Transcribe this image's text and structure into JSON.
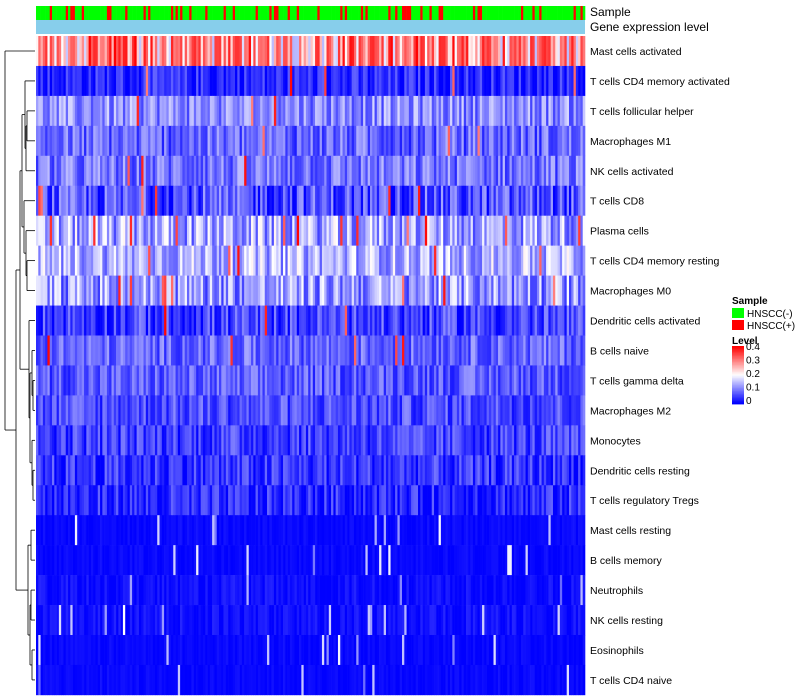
{
  "chart_data": {
    "type": "heatmap",
    "title": "",
    "rows": [
      {
        "name": "Mast cells activated",
        "mean": 0.26,
        "spread": 0.12,
        "hot": 0.3
      },
      {
        "name": "T cells CD4 memory activated",
        "mean": 0.03,
        "spread": 0.05,
        "hot": 0.02
      },
      {
        "name": "T cells follicular helper",
        "mean": 0.11,
        "spread": 0.06,
        "hot": 0.01
      },
      {
        "name": "Macrophages M1",
        "mean": 0.08,
        "spread": 0.06,
        "hot": 0.01
      },
      {
        "name": "NK cells activated",
        "mean": 0.09,
        "spread": 0.06,
        "hot": 0.01
      },
      {
        "name": "T cells CD8",
        "mean": 0.06,
        "spread": 0.07,
        "hot": 0.02
      },
      {
        "name": "Plasma cells",
        "mean": 0.13,
        "spread": 0.08,
        "hot": 0.06
      },
      {
        "name": "T cells CD4 memory resting",
        "mean": 0.14,
        "spread": 0.07,
        "hot": 0.02
      },
      {
        "name": "Macrophages M0",
        "mean": 0.12,
        "spread": 0.08,
        "hot": 0.03
      },
      {
        "name": "Dendritic cells activated",
        "mean": 0.05,
        "spread": 0.06,
        "hot": 0.01
      },
      {
        "name": "B cells naive",
        "mean": 0.08,
        "spread": 0.05,
        "hot": 0.01
      },
      {
        "name": "T cells gamma delta",
        "mean": 0.07,
        "spread": 0.05,
        "hot": 0.0
      },
      {
        "name": "Macrophages M2",
        "mean": 0.06,
        "spread": 0.05,
        "hot": 0.0
      },
      {
        "name": "Monocytes",
        "mean": 0.05,
        "spread": 0.05,
        "hot": 0.0
      },
      {
        "name": "Dendritic cells resting",
        "mean": 0.04,
        "spread": 0.05,
        "hot": 0.0
      },
      {
        "name": "T cells regulatory  Tregs",
        "mean": 0.03,
        "spread": 0.05,
        "hot": 0.0
      },
      {
        "name": "Mast cells resting",
        "mean": 0.005,
        "spread": 0.01,
        "hot": 0.0
      },
      {
        "name": "B cells memory",
        "mean": 0.005,
        "spread": 0.01,
        "hot": 0.0
      },
      {
        "name": "Neutrophils",
        "mean": 0.01,
        "spread": 0.02,
        "hot": 0.0
      },
      {
        "name": "NK cells resting",
        "mean": 0.01,
        "spread": 0.02,
        "hot": 0.0
      },
      {
        "name": "Eosinophils",
        "mean": 0.005,
        "spread": 0.01,
        "hot": 0.0
      },
      {
        "name": "T cells CD4 naive",
        "mean": 0.005,
        "spread": 0.01,
        "hot": 0.0
      }
    ],
    "n_samples": 240,
    "hnscc_pos_fraction": 0.25,
    "annotations": {
      "sample_label": "Sample",
      "expression_label": "Gene expression level"
    },
    "legend": {
      "sample_title": "Sample",
      "sample_entries": [
        {
          "label": "HNSCC(-)",
          "color": "#00ff00"
        },
        {
          "label": "HNSCC(+)",
          "color": "#ff0000"
        }
      ],
      "level_title": "Level",
      "level_ticks": [
        "0.4",
        "0.3",
        "0.2",
        "0.1",
        "0"
      ],
      "level_range": [
        0,
        0.4
      ],
      "placement": "right"
    },
    "colors": {
      "low": "#0000ff",
      "mid": "#ffffff",
      "high": "#ff0000",
      "expression_bar": "#87ceeb",
      "dendrogram": "#000000"
    }
  }
}
